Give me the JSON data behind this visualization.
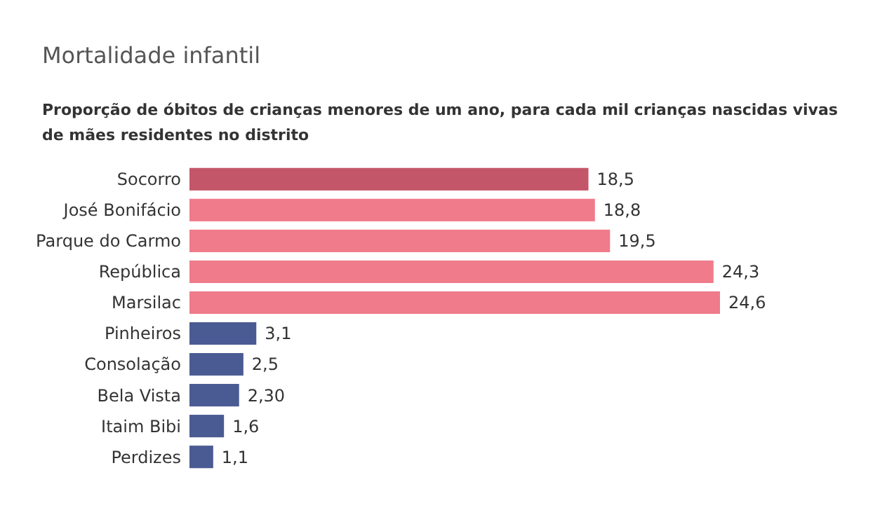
{
  "chart_data": {
    "type": "bar",
    "orientation": "horizontal",
    "title": "Mortalidade infantil",
    "subtitle": "Proporção de óbitos de crianças menores de um ano, para cada mil crianças nascidas vivas de mães residentes no distrito",
    "categories": [
      "Socorro",
      "José Bonifácio",
      "Parque do Carmo",
      "República",
      "Marsilac",
      "Pinheiros",
      "Consolação",
      "Bela Vista",
      "Itaim Bibi",
      "Perdizes"
    ],
    "values": [
      18.5,
      18.8,
      19.5,
      24.3,
      24.6,
      3.1,
      2.5,
      2.3,
      1.6,
      1.1
    ],
    "value_labels": [
      "18,5",
      "18,8",
      "19,5",
      "24,3",
      "24,6",
      "3,1",
      "2,5",
      "2,30",
      "1,6",
      "1,1"
    ],
    "colors": [
      "#c4566a",
      "#ef7b8b",
      "#ef7b8b",
      "#ef7b8b",
      "#ef7b8b",
      "#4a5a92",
      "#4a5a92",
      "#4a5a92",
      "#4a5a92",
      "#4a5a92"
    ]
  }
}
